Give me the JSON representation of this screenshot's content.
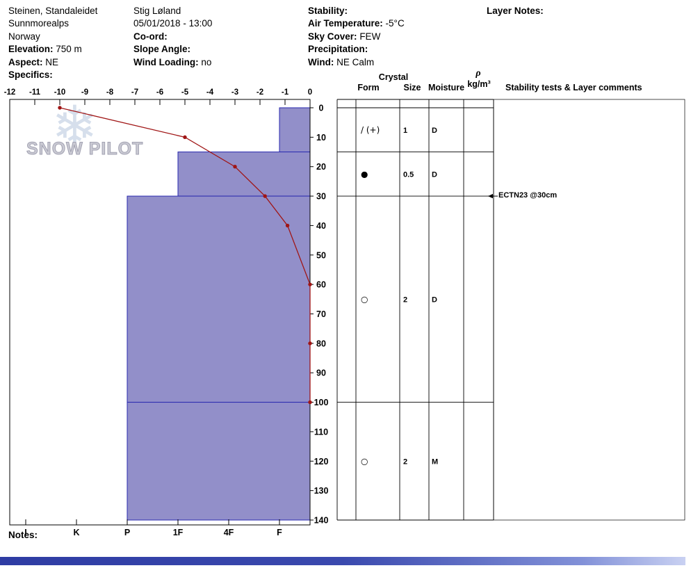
{
  "header": {
    "location": {
      "name": "Steinen, Standaleidet",
      "range": "Sunnmorealps",
      "country": "Norway",
      "elevation_label": "Elevation:",
      "elevation_value": "750 m",
      "aspect_label": "Aspect:",
      "aspect_value": "NE",
      "specifics_label": "Specifics:",
      "specifics_value": ""
    },
    "observer": {
      "name": "Stig Løland",
      "datetime": "05/01/2018 - 13:00",
      "coord_label": "Co-ord:",
      "coord_value": "",
      "slope_angle_label": "Slope Angle:",
      "slope_angle_value": "",
      "wind_loading_label": "Wind Loading:",
      "wind_loading_value": "no"
    },
    "conditions": {
      "stability_label": "Stability:",
      "stability_value": "",
      "air_temp_label": "Air Temperature:",
      "air_temp_value": "-5°C",
      "sky_label": "Sky Cover:",
      "sky_value": "FEW",
      "precip_label": "Precipitation:",
      "precip_value": "",
      "wind_label": "Wind:",
      "wind_value": "NE Calm"
    },
    "layer_notes_label": "Layer Notes:"
  },
  "watermark": {
    "text": "SNOW PILOT",
    "snowflake": "❄"
  },
  "table_headers": {
    "crystal": "Crystal",
    "form": "Form",
    "size": "Size",
    "moisture": "Moisture",
    "density_symbol": "ρ",
    "density_unit": "kg/m³",
    "stability": "Stability tests & Layer comments"
  },
  "stability_tests": [
    {
      "depth_cm": 30,
      "text": "ECTN23 @30cm"
    }
  ],
  "notes_label": "Notes:",
  "chart_data": {
    "type": "snow-profile",
    "temp_axis": {
      "min": -12,
      "max": 0,
      "ticks": [
        -12,
        -11,
        -10,
        -9,
        -8,
        -7,
        -6,
        -5,
        -4,
        -3,
        -2,
        -1,
        0
      ]
    },
    "depth_axis": {
      "min": 0,
      "max": 140,
      "ticks": [
        0,
        10,
        20,
        30,
        40,
        50,
        60,
        70,
        80,
        90,
        100,
        110,
        120,
        130,
        140
      ]
    },
    "hardness_axis": {
      "categories": [
        "I",
        "K",
        "P",
        "1F",
        "4F",
        "F"
      ]
    },
    "layers": [
      {
        "top_cm": 0,
        "bottom_cm": 15,
        "hardness": "F",
        "form": "/ (+)",
        "size_mm": "1",
        "moisture": "D"
      },
      {
        "top_cm": 15,
        "bottom_cm": 30,
        "hardness": "1F",
        "form": "●",
        "size_mm": "0.5",
        "moisture": "D"
      },
      {
        "top_cm": 30,
        "bottom_cm": 100,
        "hardness": "P",
        "form": "○",
        "size_mm": "2",
        "moisture": "D"
      },
      {
        "top_cm": 100,
        "bottom_cm": 140,
        "hardness": "P",
        "form": "○",
        "size_mm": "2",
        "moisture": "M"
      }
    ],
    "temperature_profile": [
      {
        "depth_cm": 0,
        "temp_c": -10
      },
      {
        "depth_cm": 10,
        "temp_c": -5
      },
      {
        "depth_cm": 20,
        "temp_c": -3
      },
      {
        "depth_cm": 30,
        "temp_c": -1.8
      },
      {
        "depth_cm": 40,
        "temp_c": -0.9
      },
      {
        "depth_cm": 60,
        "temp_c": 0
      },
      {
        "depth_cm": 80,
        "temp_c": 0
      },
      {
        "depth_cm": 100,
        "temp_c": 0
      }
    ],
    "colors": {
      "layer_fill": "#928fc9",
      "layer_border": "#2a2ab0",
      "temp_line": "#a01515",
      "grid": "#000000"
    }
  }
}
